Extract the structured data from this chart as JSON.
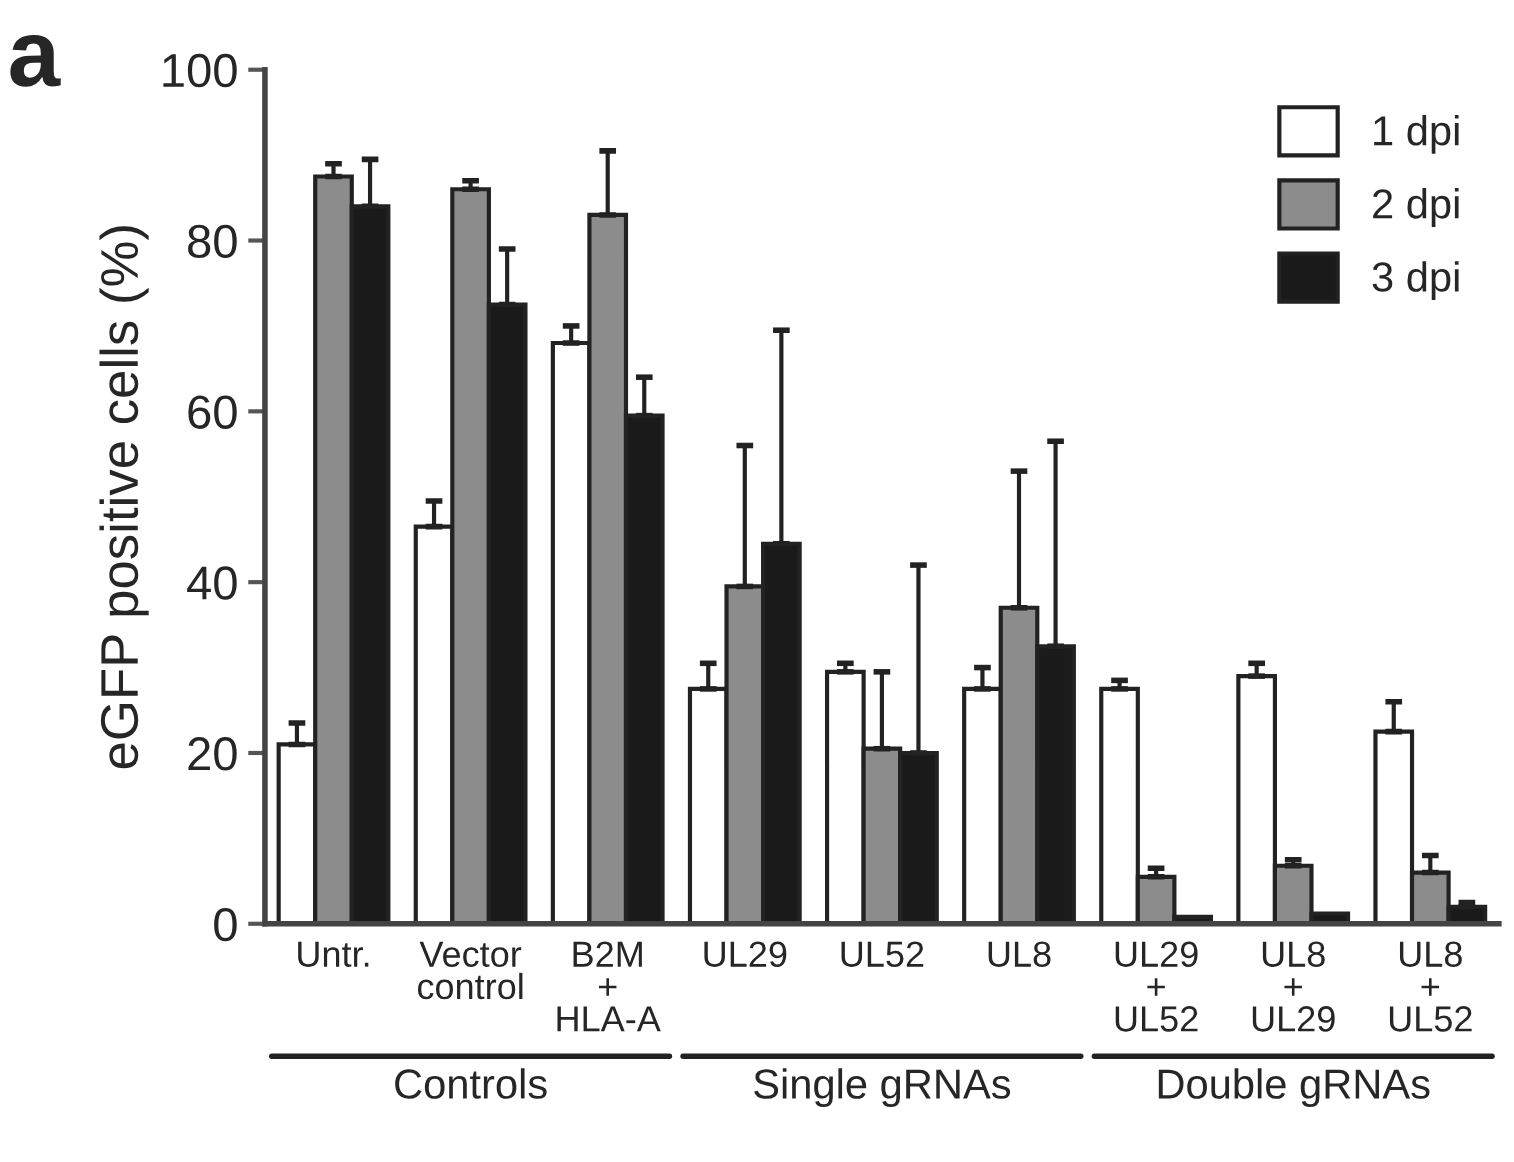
{
  "chart_data": {
    "type": "bar",
    "ylabel": "eGFP positive cells (%)",
    "categories": [
      "Untr.",
      "Vector\ncontrol",
      "B2M\n+\nHLA-A",
      "UL29",
      "UL52",
      "UL8",
      "UL29\n+\nUL52",
      "UL8\n+\nUL29",
      "UL8\n+\nUL52"
    ],
    "series": [
      {
        "name": "1 dpi",
        "color": "#ffffff",
        "values": [
          21,
          46.5,
          68,
          27.5,
          29.5,
          27.5,
          27.5,
          29,
          22.5
        ],
        "errors": [
          [
            21,
            23.5
          ],
          [
            46.5,
            49.5
          ],
          [
            68,
            70
          ],
          [
            27.5,
            30.5
          ],
          [
            29.5,
            30.5
          ],
          [
            27.5,
            30
          ],
          [
            27.5,
            28.5
          ],
          [
            29,
            30.5
          ],
          [
            22.5,
            26
          ]
        ]
      },
      {
        "name": "2 dpi",
        "color": "#8c8c8c",
        "values": [
          87.5,
          86,
          83,
          39.5,
          20.5,
          37,
          5.5,
          6.8,
          6
        ],
        "errors": [
          [
            87.5,
            89
          ],
          [
            86,
            87
          ],
          [
            83,
            90.5
          ],
          [
            39.5,
            56
          ],
          [
            20.5,
            29.5
          ],
          [
            37,
            53
          ],
          [
            5.5,
            6.5
          ],
          [
            6.8,
            7.5
          ],
          [
            6,
            8
          ]
        ]
      },
      {
        "name": "3 dpi",
        "color": "#1a1a1a",
        "values": [
          84,
          72.5,
          59.5,
          44.5,
          20,
          32.5,
          0.8,
          1.2,
          2
        ],
        "errors": [
          [
            84,
            89.5
          ],
          [
            72.5,
            79
          ],
          [
            59.5,
            64
          ],
          [
            44.5,
            69.5
          ],
          [
            20,
            42
          ],
          [
            32.5,
            56.5
          ],
          null,
          null,
          [
            2,
            2.5
          ]
        ]
      }
    ],
    "ylim": [
      0,
      100
    ],
    "yticks": [
      0,
      20,
      40,
      60,
      80,
      100
    ],
    "legend": "top right",
    "grid": false,
    "annotations": [
      "a",
      "Controls",
      "Single gRNAs",
      "Double gRNAs"
    ]
  }
}
